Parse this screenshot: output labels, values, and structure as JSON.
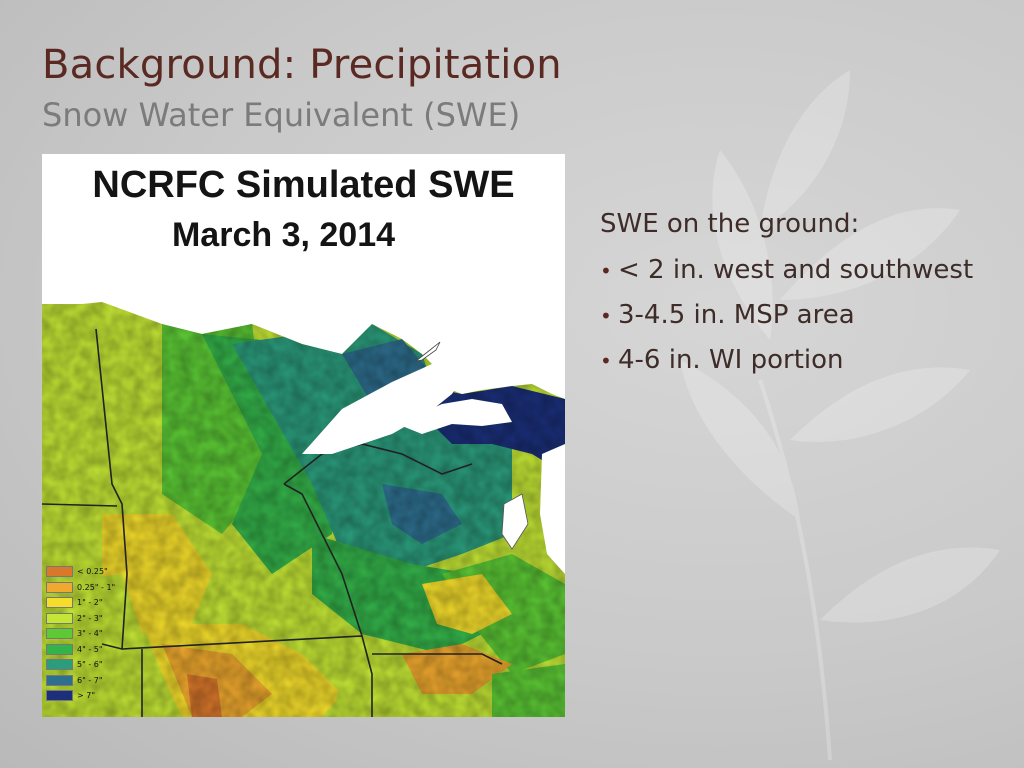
{
  "slide": {
    "title": "Background:  Precipitation",
    "subtitle": "Snow Water Equivalent (SWE)"
  },
  "map": {
    "title_line1": "NCRFC Simulated SWE",
    "title_line2": "March 3, 2014",
    "legend": [
      {
        "label": "< 0.25\"",
        "color": "#d9772b"
      },
      {
        "label": "0.25\" - 1\"",
        "color": "#f0a92e"
      },
      {
        "label": "1\" - 2\"",
        "color": "#f4dd2b"
      },
      {
        "label": "2\" - 3\"",
        "color": "#c4e635"
      },
      {
        "label": "3\" - 4\"",
        "color": "#5cc935"
      },
      {
        "label": "4\" - 5\"",
        "color": "#34b34a"
      },
      {
        "label": "5\" - 6\"",
        "color": "#2b9c7c"
      },
      {
        "label": "6\" - 7\"",
        "color": "#2e6f8f"
      },
      {
        "label": "> 7\"",
        "color": "#1b2f7a"
      }
    ]
  },
  "text": {
    "heading": "SWE on the ground:",
    "bullets": [
      "< 2 in. west and southwest",
      "3-4.5 in. MSP area",
      "4-6 in. WI portion"
    ]
  },
  "colors": {
    "title": "#5a2a22",
    "subtitle": "#7b7b7b",
    "lake": "#ffffff"
  }
}
